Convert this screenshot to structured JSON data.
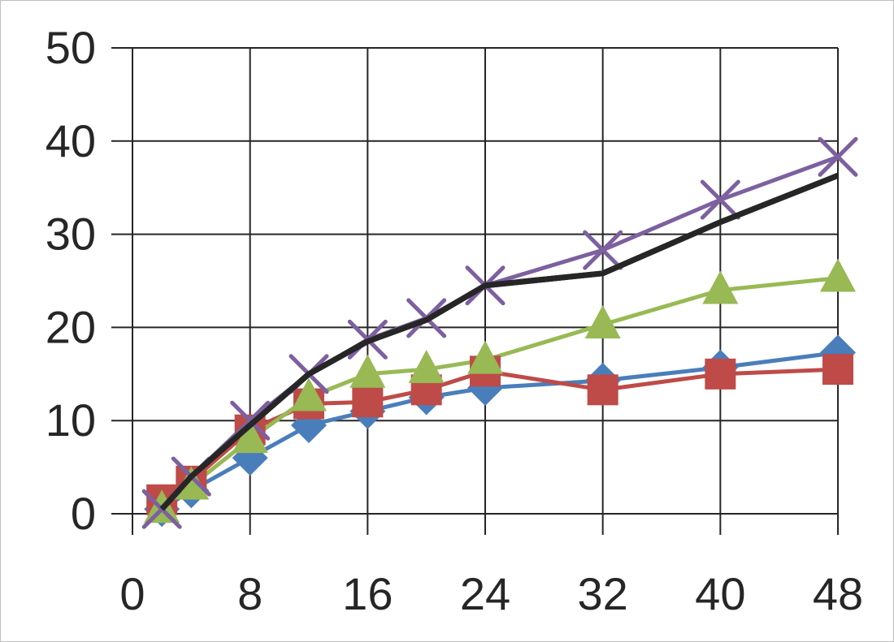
{
  "chart_data": {
    "type": "line",
    "title": "",
    "xlabel": "",
    "ylabel": "",
    "xlim": [
      0,
      48
    ],
    "ylim": [
      0,
      50
    ],
    "grid": true,
    "x_ticks": [
      "0",
      "8",
      "16",
      "24",
      "32",
      "40",
      "48"
    ],
    "y_ticks": [
      "0",
      "10",
      "20",
      "30",
      "40",
      "50"
    ],
    "series": [
      {
        "color": "#4a7ebb",
        "marker": "diamond",
        "x": [
          2,
          4,
          8,
          12,
          16,
          20,
          24,
          32,
          40,
          48
        ],
        "y": [
          0.5,
          2.5,
          6.0,
          9.5,
          11.0,
          12.5,
          13.5,
          14.3,
          15.7,
          17.3
        ]
      },
      {
        "color": "#be4b48",
        "marker": "square",
        "x": [
          2,
          4,
          8,
          12,
          16,
          20,
          24,
          32,
          40,
          48
        ],
        "y": [
          1.5,
          3.5,
          9.0,
          11.8,
          12.0,
          13.3,
          15.3,
          13.3,
          15.0,
          15.5
        ]
      },
      {
        "color": "#98b954",
        "marker": "triangle",
        "x": [
          2,
          4,
          8,
          12,
          16,
          20,
          24,
          32,
          40,
          48
        ],
        "y": [
          0.5,
          3.0,
          8.0,
          12.5,
          15.0,
          15.5,
          16.5,
          20.3,
          24.0,
          25.3
        ]
      },
      {
        "color": "#7d60a0",
        "marker": "x",
        "x": [
          2,
          4,
          8,
          12,
          16,
          20,
          24,
          32,
          40,
          48
        ],
        "y": [
          0.5,
          4.0,
          10.0,
          15.0,
          18.7,
          21.0,
          24.5,
          28.3,
          33.7,
          38.3
        ]
      },
      {
        "color": "#262626",
        "marker": "none",
        "x": [
          2,
          4,
          8,
          12,
          16,
          20,
          24,
          32,
          40,
          48
        ],
        "y": [
          0.5,
          4.0,
          9.5,
          15.0,
          18.5,
          20.8,
          24.5,
          25.8,
          31.3,
          36.3
        ]
      }
    ]
  }
}
